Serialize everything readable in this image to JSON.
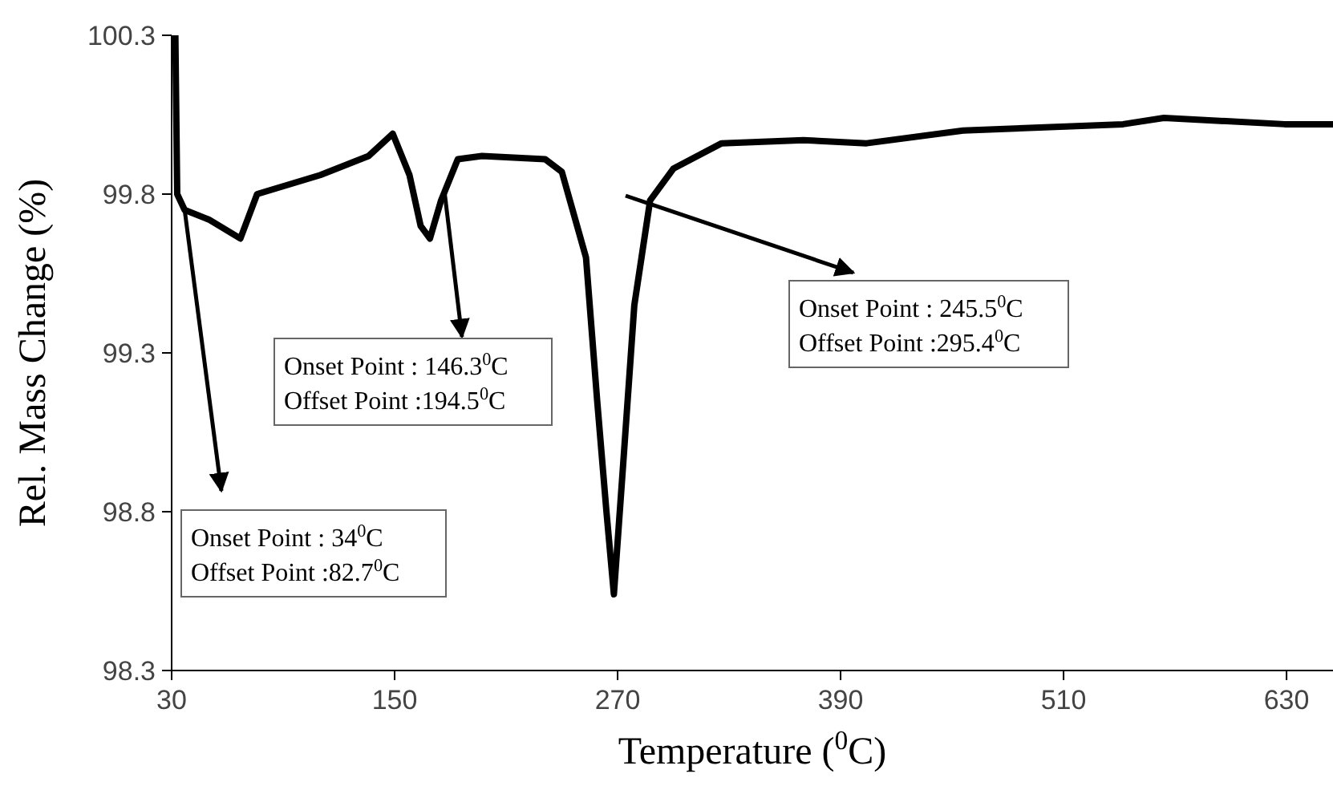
{
  "chart_data": {
    "type": "line",
    "xlabel": "Temperature ($^{0}$C)",
    "ylabel": "Rel. Mass Change (%)",
    "xlim": [
      30,
      655
    ],
    "ylim": [
      98.3,
      100.3
    ],
    "xticks": [
      30,
      150,
      270,
      390,
      510,
      630
    ],
    "yticks": [
      98.3,
      98.8,
      99.3,
      99.8,
      100.3
    ],
    "series": [
      {
        "color": "#000000",
        "x": [
          32,
          33,
          37,
          50,
          67,
          76,
          110,
          136,
          149,
          158,
          164,
          169,
          175,
          184,
          197,
          231,
          240,
          253,
          259,
          264,
          268,
          273,
          279,
          287.5,
          300,
          326,
          370,
          404,
          456,
          542,
          564,
          629,
          655
        ],
        "values": [
          100.3,
          99.8,
          99.75,
          99.72,
          99.66,
          99.8,
          99.86,
          99.92,
          99.99,
          99.86,
          99.7,
          99.66,
          99.78,
          99.91,
          99.92,
          99.91,
          99.87,
          99.6,
          99.15,
          98.8,
          98.54,
          98.95,
          99.45,
          99.78,
          99.88,
          99.96,
          99.97,
          99.96,
          100.0,
          100.02,
          100.04,
          100.02,
          100.02
        ]
      }
    ],
    "annotations": [
      {
        "text": "Onset Point : 34$^{0}$C\nOffset Point :82.7$^{0}$C",
        "x": 37,
        "y": 99.75
      },
      {
        "text": "Onset Point : 146.3$^{0}$C\nOffset Point :194.5$^{0}$C",
        "x": 177,
        "y": 99.8
      },
      "Onset Point : 245.5$^{0}$C\nOffset Point :295.4$^{0}$C"
    ]
  }
}
